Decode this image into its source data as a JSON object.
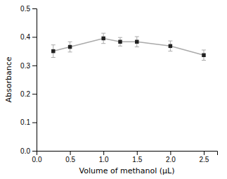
{
  "chart_data": {
    "type": "line",
    "x": [
      0.25,
      0.5,
      1.0,
      1.25,
      1.5,
      2.0,
      2.5
    ],
    "values": [
      0.35,
      0.365,
      0.395,
      0.383,
      0.383,
      0.368,
      0.336
    ],
    "yerr": [
      0.022,
      0.018,
      0.018,
      0.015,
      0.018,
      0.018,
      0.018
    ],
    "xlabel": "Volume of methanol (μL)",
    "ylabel": "Absorbance",
    "xlim": [
      0.0,
      2.7
    ],
    "ylim": [
      0.0,
      0.5
    ],
    "xticks": [
      {
        "value": 0.0,
        "label": "0.0"
      },
      0.5,
      {
        "value": 1.0,
        "label": "1.0"
      },
      1.5,
      {
        "value": 2.0,
        "label": "2.0"
      },
      2.5
    ],
    "yticks": [
      {
        "value": 0.0,
        "label": "0.0"
      },
      0.1,
      0.2,
      0.3,
      0.4,
      0.5
    ],
    "color": "#aaaaaa",
    "marker": "square"
  }
}
